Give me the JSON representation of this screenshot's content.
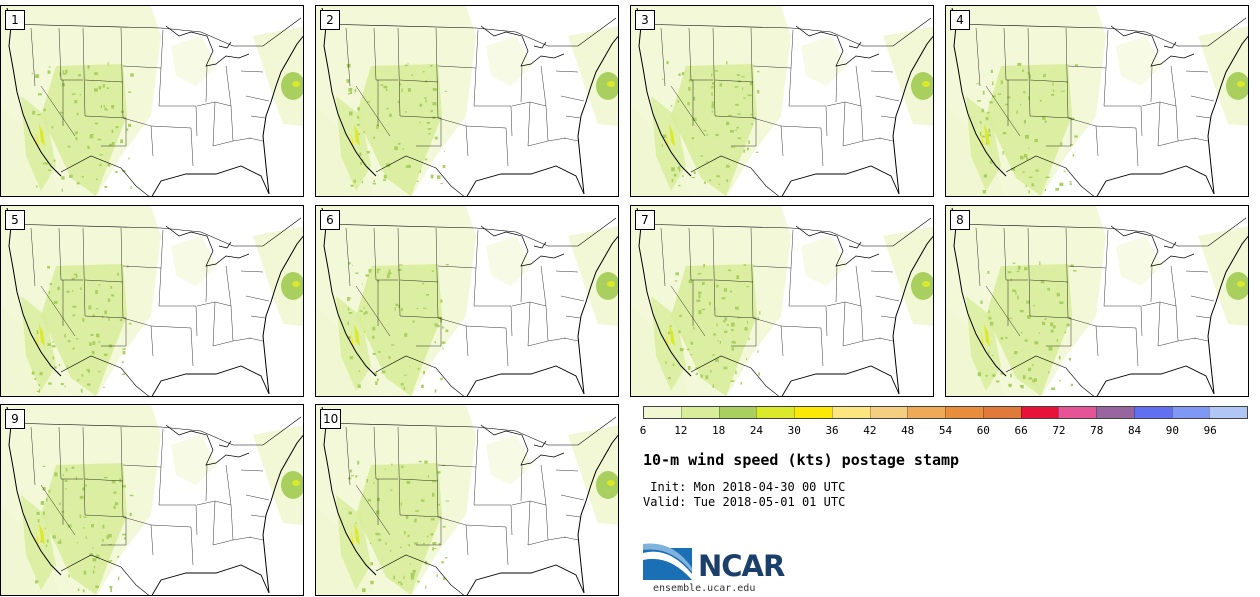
{
  "figure": {
    "title": "10-m wind speed (kts) postage stamp",
    "init_line": "Init: Mon 2018-04-30 00 UTC",
    "valid_line": "Valid: Tue 2018-05-01 01 UTC",
    "source_url": "ensemble.ucar.edu",
    "logo_text": "NCAR"
  },
  "members": [
    "1",
    "2",
    "3",
    "4",
    "5",
    "6",
    "7",
    "8",
    "9",
    "10"
  ],
  "colorbar": {
    "label": "10-m wind speed (kts)",
    "tick_labels": [
      "6",
      "12",
      "18",
      "24",
      "30",
      "36",
      "42",
      "48",
      "54",
      "60",
      "66",
      "72",
      "78",
      "84",
      "90",
      "96"
    ],
    "colors": [
      "#f1f7d2",
      "#d8ec9a",
      "#a9cf5f",
      "#dbe92b",
      "#fbe805",
      "#fbe680",
      "#f4cf82",
      "#eeaa56",
      "#e88d3c",
      "#e0793a",
      "#e8113a",
      "#e55596",
      "#97669f",
      "#626ff0",
      "#7f97f5",
      "#b0c7f6"
    ]
  },
  "chart_data": {
    "type": "heatmap",
    "title": "10-m wind speed (kts) postage stamp",
    "variable": "10-m wind speed",
    "units": "kts",
    "levels": [
      6,
      12,
      18,
      24,
      30,
      36,
      42,
      48,
      54,
      60,
      66,
      72,
      78,
      84,
      90,
      96
    ],
    "members": [
      "1",
      "2",
      "3",
      "4",
      "5",
      "6",
      "7",
      "8",
      "9",
      "10"
    ],
    "region": "Contiguous United States",
    "init": "Mon 2018-04-30 00 UTC",
    "valid": "Tue 2018-05-01 01 UTC"
  }
}
